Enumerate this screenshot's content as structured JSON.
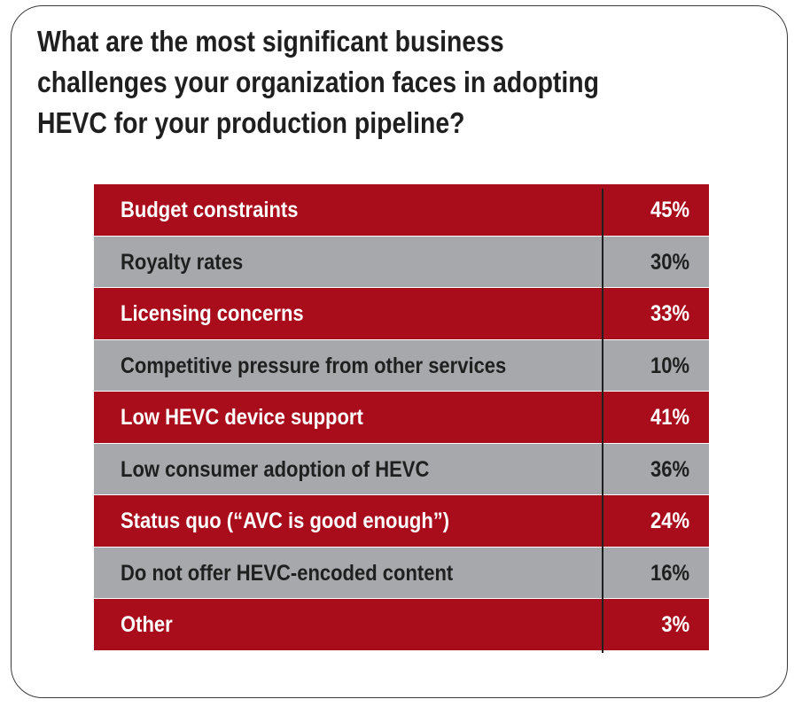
{
  "chart_data": {
    "type": "table",
    "title_lines": [
      "What are the most significant business",
      "challenges your organization faces in adopting",
      "HEVC for your production pipeline?"
    ],
    "categories": [
      "Budget constraints",
      "Royalty rates",
      "Licensing concerns",
      "Competitive pressure from other services",
      "Low HEVC device support",
      "Low consumer adoption of HEVC",
      "Status quo (“AVC is good enough”)",
      "Do not offer HEVC-encoded content",
      "Other"
    ],
    "values": [
      45,
      30,
      33,
      10,
      41,
      36,
      24,
      16,
      3
    ],
    "value_labels": [
      "45%",
      "30%",
      "33%",
      "10%",
      "41%",
      "36%",
      "24%",
      "16%",
      "3%"
    ],
    "row_colors": [
      "#a90c1a",
      "#a6a8ab"
    ]
  }
}
